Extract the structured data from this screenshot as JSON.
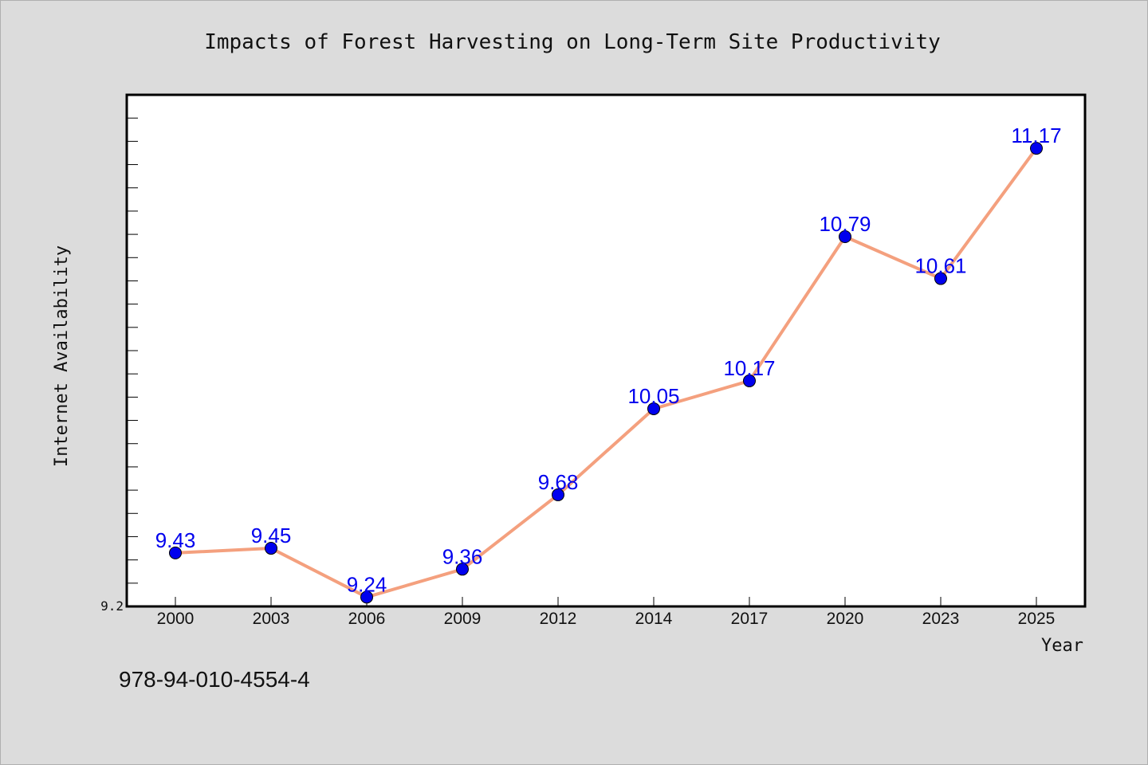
{
  "chart_data": {
    "type": "line",
    "title": "Impacts of Forest Harvesting on Long-Term Site Productivity",
    "xlabel": "Year",
    "ylabel": "Internet Availability",
    "categories": [
      "2000",
      "2003",
      "2006",
      "2009",
      "2012",
      "2014",
      "2017",
      "2020",
      "2023",
      "2025"
    ],
    "series": [
      {
        "values": [
          9.43,
          9.45,
          9.24,
          9.36,
          9.68,
          10.05,
          10.17,
          10.79,
          10.61,
          11.17
        ],
        "data_labels": [
          "9.43",
          "9.45",
          "9.24",
          "9.36",
          "9.68",
          "10.05",
          "10.17",
          "10.79",
          "10.61",
          "11.17"
        ]
      }
    ],
    "ylim": [
      9.2,
      11.4
    ],
    "y_tick_labels": [
      {
        "value": 9.2,
        "label": "9.2"
      }
    ],
    "y_minor_tick_step": 0.1,
    "grid": false,
    "line_color": "#f4a07e",
    "marker_color": "#0000ee",
    "label_color": "#0000ee",
    "plot_background": "#ffffff",
    "page_background": "#dcdcdc"
  },
  "footer": {
    "isbn": "978-94-010-4554-4"
  }
}
